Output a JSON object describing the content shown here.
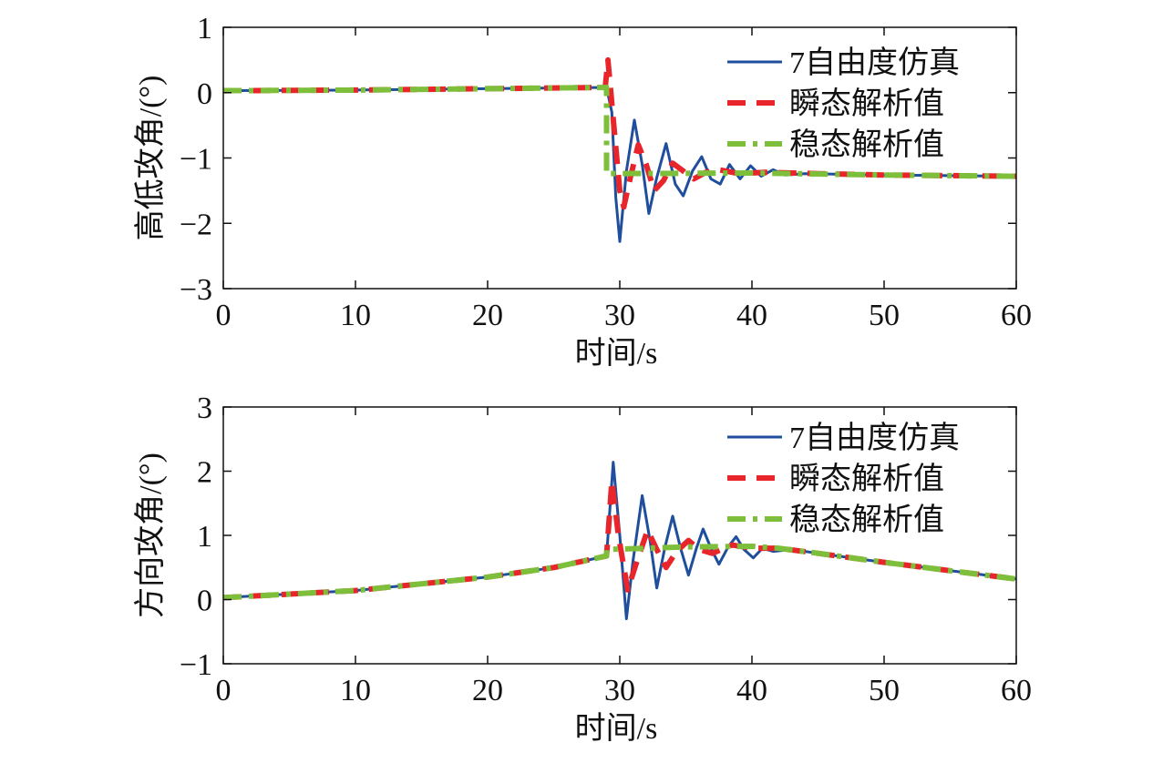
{
  "chart_data": [
    {
      "type": "line",
      "xlabel": "时间/s",
      "ylabel": "高低攻角/(°)",
      "xlim": [
        0,
        60
      ],
      "ylim": [
        -3,
        1
      ],
      "xticks": [
        "0",
        "10",
        "20",
        "30",
        "40",
        "50",
        "60"
      ],
      "yticks": [
        "1",
        "0",
        "−1",
        "−2",
        "−3"
      ],
      "grid": false,
      "legend_position": "top-right",
      "series": [
        {
          "name": "7自由度仿真",
          "color": "#1f4e9c",
          "style": "solid",
          "points": [
            [
              0,
              0.03
            ],
            [
              10,
              0.04
            ],
            [
              20,
              0.06
            ],
            [
              29,
              0.08
            ],
            [
              29.4,
              -0.3
            ],
            [
              29.7,
              -1.6
            ],
            [
              30,
              -2.28
            ],
            [
              30.5,
              -1.2
            ],
            [
              31.1,
              -0.42
            ],
            [
              31.7,
              -1.1
            ],
            [
              32.2,
              -1.85
            ],
            [
              32.8,
              -1.3
            ],
            [
              33.5,
              -0.78
            ],
            [
              34.2,
              -1.4
            ],
            [
              34.8,
              -1.58
            ],
            [
              35.5,
              -1.2
            ],
            [
              36.2,
              -0.98
            ],
            [
              36.9,
              -1.32
            ],
            [
              37.6,
              -1.4
            ],
            [
              38.3,
              -1.1
            ],
            [
              39.1,
              -1.32
            ],
            [
              39.9,
              -1.12
            ],
            [
              40.7,
              -1.28
            ],
            [
              41.6,
              -1.18
            ],
            [
              42.5,
              -1.26
            ],
            [
              44,
              -1.24
            ],
            [
              50,
              -1.26
            ],
            [
              60,
              -1.28
            ]
          ]
        },
        {
          "name": "瞬态解析值",
          "color": "#e8252a",
          "style": "dashed",
          "points": [
            [
              0,
              0.03
            ],
            [
              10,
              0.04
            ],
            [
              20,
              0.06
            ],
            [
              28.9,
              0.08
            ],
            [
              29.1,
              0.5
            ],
            [
              29.5,
              -0.4
            ],
            [
              30,
              -1.5
            ],
            [
              30.3,
              -1.75
            ],
            [
              30.8,
              -1.3
            ],
            [
              31.4,
              -0.8
            ],
            [
              32,
              -1.1
            ],
            [
              32.6,
              -1.5
            ],
            [
              33.3,
              -1.35
            ],
            [
              34,
              -1.08
            ],
            [
              34.8,
              -1.2
            ],
            [
              35.6,
              -1.32
            ],
            [
              36.5,
              -1.22
            ],
            [
              37.5,
              -1.18
            ],
            [
              39,
              -1.24
            ],
            [
              41,
              -1.22
            ],
            [
              45,
              -1.24
            ],
            [
              50,
              -1.26
            ],
            [
              60,
              -1.28
            ]
          ]
        },
        {
          "name": "稳态解析值",
          "color": "#7dbf3a",
          "style": "dash-dot",
          "points": [
            [
              0,
              0.03
            ],
            [
              10,
              0.04
            ],
            [
              20,
              0.06
            ],
            [
              29,
              0.08
            ],
            [
              29,
              -1.24
            ],
            [
              40,
              -1.23
            ],
            [
              50,
              -1.26
            ],
            [
              60,
              -1.28
            ]
          ]
        }
      ]
    },
    {
      "type": "line",
      "xlabel": "时间/s",
      "ylabel": "方向攻角/(°)",
      "xlim": [
        0,
        60
      ],
      "ylim": [
        -1,
        3
      ],
      "xticks": [
        "0",
        "10",
        "20",
        "30",
        "40",
        "50",
        "60"
      ],
      "yticks": [
        "3",
        "2",
        "1",
        "0",
        "−1"
      ],
      "grid": false,
      "legend_position": "top-right",
      "series": [
        {
          "name": "7自由度仿真",
          "color": "#1f4e9c",
          "style": "solid",
          "points": [
            [
              0,
              0.03
            ],
            [
              10,
              0.14
            ],
            [
              20,
              0.35
            ],
            [
              25,
              0.5
            ],
            [
              29,
              0.68
            ],
            [
              29.5,
              2.14
            ],
            [
              30,
              1.0
            ],
            [
              30.5,
              -0.3
            ],
            [
              31,
              0.6
            ],
            [
              31.7,
              1.62
            ],
            [
              32.3,
              0.9
            ],
            [
              32.8,
              0.18
            ],
            [
              33.4,
              0.8
            ],
            [
              34,
              1.3
            ],
            [
              34.6,
              0.8
            ],
            [
              35.2,
              0.38
            ],
            [
              35.8,
              0.8
            ],
            [
              36.3,
              1.1
            ],
            [
              36.9,
              0.8
            ],
            [
              37.5,
              0.55
            ],
            [
              38.2,
              0.82
            ],
            [
              38.8,
              0.98
            ],
            [
              39.4,
              0.78
            ],
            [
              40.1,
              0.65
            ],
            [
              40.8,
              0.8
            ],
            [
              41.6,
              0.75
            ],
            [
              43,
              0.78
            ],
            [
              45,
              0.72
            ],
            [
              50,
              0.58
            ],
            [
              55,
              0.45
            ],
            [
              60,
              0.32
            ]
          ]
        },
        {
          "name": "瞬态解析值",
          "color": "#e8252a",
          "style": "dashed",
          "points": [
            [
              0,
              0.03
            ],
            [
              10,
              0.14
            ],
            [
              20,
              0.35
            ],
            [
              25,
              0.5
            ],
            [
              29,
              0.68
            ],
            [
              29.4,
              1.85
            ],
            [
              29.9,
              1.0
            ],
            [
              30.6,
              0.15
            ],
            [
              31.3,
              0.6
            ],
            [
              32.1,
              1.08
            ],
            [
              32.8,
              0.78
            ],
            [
              33.5,
              0.5
            ],
            [
              34.3,
              0.75
            ],
            [
              35.2,
              0.92
            ],
            [
              36,
              0.78
            ],
            [
              37,
              0.72
            ],
            [
              38.5,
              0.85
            ],
            [
              40,
              0.8
            ],
            [
              42,
              0.8
            ],
            [
              45,
              0.72
            ],
            [
              50,
              0.58
            ],
            [
              55,
              0.45
            ],
            [
              60,
              0.32
            ]
          ]
        },
        {
          "name": "稳态解析值",
          "color": "#7dbf3a",
          "style": "dash-dot",
          "points": [
            [
              0,
              0.03
            ],
            [
              10,
              0.14
            ],
            [
              20,
              0.35
            ],
            [
              25,
              0.5
            ],
            [
              29,
              0.68
            ],
            [
              29,
              0.78
            ],
            [
              35,
              0.82
            ],
            [
              40,
              0.83
            ],
            [
              42,
              0.8
            ],
            [
              45,
              0.72
            ],
            [
              50,
              0.58
            ],
            [
              55,
              0.45
            ],
            [
              60,
              0.32
            ]
          ]
        }
      ]
    }
  ]
}
